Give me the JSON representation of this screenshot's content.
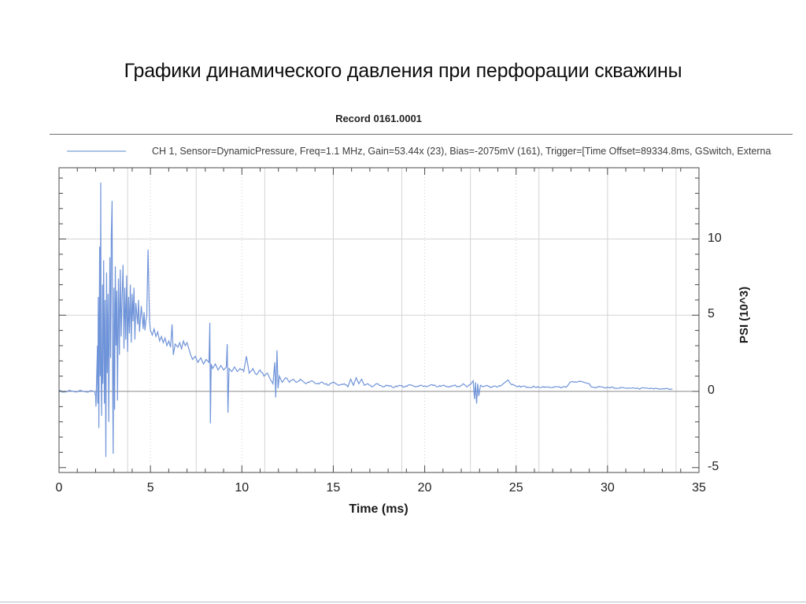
{
  "slide_title": "Графики динамического давления при перфорации скважины",
  "colors": {
    "waveform": "#7094d9",
    "legend_swatch": "#aac4e4",
    "grid_solid": "#d4d4d4",
    "grid_dotted": "#cfcfcf",
    "grid_horizontal": "#d4d4d4",
    "zero_line": "#8a8a8a",
    "frame": "#4a4a4a",
    "tick": "#4a4a4a"
  },
  "chart_data": {
    "type": "line",
    "title": "Record 0161.0001",
    "xlabel": "Time (ms)",
    "ylabel": "PSI (10^3)",
    "xlim": [
      0,
      35
    ],
    "ylim": [
      -5.4,
      14.7
    ],
    "x_major_ticks": [
      0,
      5,
      10,
      15,
      20,
      25,
      30,
      35
    ],
    "x_minor_step": 1,
    "y_major_ticks": [
      -5,
      0,
      5,
      10
    ],
    "y_minor_step": 1,
    "grid": {
      "vertical_solid_step_ms": 3.75,
      "vertical_dotted_at_ms": [
        5,
        10,
        15,
        20,
        25,
        30
      ],
      "horizontal_light_at": [
        5,
        10
      ],
      "zero_line_at": 0
    },
    "legend": {
      "position": "top-left-inside",
      "entries": [
        {
          "label": "CH 1, Sensor=DynamicPressure, Freq=1.1 MHz, Gain=53.44x (23), Bias=-2075mV (161), Trigger=[Time Offset=89334.8ms, GSwitch, Externa",
          "color": "#aac4e4"
        }
      ]
    },
    "series": [
      {
        "name": "CH 1 Dynamic Pressure",
        "color": "#7094d9",
        "points": [
          [
            0,
            0.05
          ],
          [
            0.3,
            -0.05
          ],
          [
            0.6,
            0.06
          ],
          [
            0.9,
            -0.04
          ],
          [
            1.2,
            0.05
          ],
          [
            1.5,
            -0.05
          ],
          [
            1.8,
            0.04
          ],
          [
            1.95,
            -0.02
          ],
          [
            2.0,
            -0.3
          ],
          [
            2.02,
            -1.0
          ],
          [
            2.05,
            0.5
          ],
          [
            2.1,
            3.0
          ],
          [
            2.12,
            -0.8
          ],
          [
            2.15,
            6.2
          ],
          [
            2.18,
            -2.4
          ],
          [
            2.22,
            9.5
          ],
          [
            2.25,
            1.0
          ],
          [
            2.28,
            13.7
          ],
          [
            2.3,
            2.0
          ],
          [
            2.33,
            -1.6
          ],
          [
            2.38,
            7.0
          ],
          [
            2.4,
            0.5
          ],
          [
            2.44,
            8.6
          ],
          [
            2.48,
            -0.8
          ],
          [
            2.52,
            6.0
          ],
          [
            2.56,
            -4.3
          ],
          [
            2.6,
            7.8
          ],
          [
            2.64,
            1.2
          ],
          [
            2.68,
            6.4
          ],
          [
            2.72,
            -2.0
          ],
          [
            2.78,
            8.8
          ],
          [
            2.82,
            2.2
          ],
          [
            2.86,
            10.2
          ],
          [
            2.9,
            12.5
          ],
          [
            2.93,
            0.8
          ],
          [
            2.96,
            -4.1
          ],
          [
            3.0,
            6.8
          ],
          [
            3.04,
            -1.2
          ],
          [
            3.08,
            8.2
          ],
          [
            3.12,
            3.0
          ],
          [
            3.16,
            6.6
          ],
          [
            3.2,
            -0.6
          ],
          [
            3.25,
            7.4
          ],
          [
            3.3,
            2.4
          ],
          [
            3.35,
            8.0
          ],
          [
            3.4,
            3.6
          ],
          [
            3.45,
            6.2
          ],
          [
            3.5,
            8.3
          ],
          [
            3.55,
            2.8
          ],
          [
            3.6,
            6.8
          ],
          [
            3.65,
            3.4
          ],
          [
            3.7,
            7.6
          ],
          [
            3.75,
            2.6
          ],
          [
            3.8,
            6.2
          ],
          [
            3.85,
            3.8
          ],
          [
            3.9,
            7.0
          ],
          [
            3.95,
            3.2
          ],
          [
            4.0,
            6.4
          ],
          [
            4.05,
            4.6
          ],
          [
            4.1,
            6.8
          ],
          [
            4.15,
            3.4
          ],
          [
            4.2,
            5.8
          ],
          [
            4.3,
            4.4
          ],
          [
            4.35,
            6.0
          ],
          [
            4.4,
            3.9
          ],
          [
            4.5,
            5.6
          ],
          [
            4.6,
            4.1
          ],
          [
            4.65,
            5.2
          ],
          [
            4.7,
            4.0
          ],
          [
            4.75,
            4.6
          ],
          [
            4.8,
            5.0
          ],
          [
            4.87,
            9.3
          ],
          [
            4.95,
            4.6
          ],
          [
            5.0,
            4.0
          ],
          [
            5.1,
            3.7
          ],
          [
            5.2,
            4.1
          ],
          [
            5.3,
            3.6
          ],
          [
            5.4,
            3.9
          ],
          [
            5.5,
            3.3
          ],
          [
            5.6,
            3.6
          ],
          [
            5.7,
            3.2
          ],
          [
            5.8,
            3.5
          ],
          [
            5.9,
            3.0
          ],
          [
            6.0,
            3.3
          ],
          [
            6.1,
            2.9
          ],
          [
            6.18,
            4.4
          ],
          [
            6.25,
            2.4
          ],
          [
            6.35,
            3.1
          ],
          [
            6.5,
            2.9
          ],
          [
            6.6,
            3.2
          ],
          [
            6.7,
            2.8
          ],
          [
            6.8,
            3.3
          ],
          [
            6.9,
            3.0
          ],
          [
            7.0,
            3.2
          ],
          [
            7.1,
            2.8
          ],
          [
            7.2,
            2.4
          ],
          [
            7.3,
            2.1
          ],
          [
            7.45,
            2.3
          ],
          [
            7.6,
            1.9
          ],
          [
            7.75,
            2.2
          ],
          [
            7.9,
            1.8
          ],
          [
            8.05,
            2.1
          ],
          [
            8.2,
            1.9
          ],
          [
            8.25,
            4.5
          ],
          [
            8.28,
            -2.1
          ],
          [
            8.32,
            1.8
          ],
          [
            8.4,
            1.5
          ],
          [
            8.55,
            1.8
          ],
          [
            8.7,
            1.4
          ],
          [
            8.85,
            1.7
          ],
          [
            9.0,
            1.4
          ],
          [
            9.15,
            1.6
          ],
          [
            9.2,
            3.1
          ],
          [
            9.24,
            -1.4
          ],
          [
            9.3,
            1.5
          ],
          [
            9.45,
            1.3
          ],
          [
            9.6,
            1.6
          ],
          [
            9.75,
            1.3
          ],
          [
            9.9,
            1.5
          ],
          [
            10.1,
            1.3
          ],
          [
            10.25,
            2.3
          ],
          [
            10.4,
            1.2
          ],
          [
            10.6,
            1.5
          ],
          [
            10.8,
            1.1
          ],
          [
            11.0,
            1.4
          ],
          [
            11.2,
            1.0
          ],
          [
            11.4,
            1.2
          ],
          [
            11.55,
            0.8
          ],
          [
            11.7,
            0.5
          ],
          [
            11.8,
            1.9
          ],
          [
            11.85,
            -0.4
          ],
          [
            11.92,
            2.7
          ],
          [
            11.98,
            0.2
          ],
          [
            12.05,
            1.0
          ],
          [
            12.2,
            0.6
          ],
          [
            12.4,
            0.9
          ],
          [
            12.6,
            0.6
          ],
          [
            12.8,
            0.8
          ],
          [
            13.0,
            0.6
          ],
          [
            13.2,
            0.8
          ],
          [
            13.5,
            0.5
          ],
          [
            13.8,
            0.7
          ],
          [
            14.1,
            0.5
          ],
          [
            14.4,
            0.6
          ],
          [
            14.7,
            0.4
          ],
          [
            15.0,
            0.6
          ],
          [
            15.3,
            0.4
          ],
          [
            15.6,
            0.5
          ],
          [
            15.8,
            0.3
          ],
          [
            15.95,
            0.8
          ],
          [
            16.1,
            0.4
          ],
          [
            16.25,
            0.9
          ],
          [
            16.4,
            0.5
          ],
          [
            16.55,
            0.8
          ],
          [
            16.7,
            0.4
          ],
          [
            16.9,
            0.5
          ],
          [
            17.1,
            0.3
          ],
          [
            17.4,
            0.5
          ],
          [
            17.7,
            0.3
          ],
          [
            18.0,
            0.4
          ],
          [
            18.3,
            0.25
          ],
          [
            18.6,
            0.4
          ],
          [
            18.9,
            0.3
          ],
          [
            19.2,
            0.45
          ],
          [
            19.5,
            0.3
          ],
          [
            19.8,
            0.4
          ],
          [
            20.1,
            0.3
          ],
          [
            20.4,
            0.45
          ],
          [
            20.7,
            0.3
          ],
          [
            21.0,
            0.4
          ],
          [
            21.3,
            0.28
          ],
          [
            21.6,
            0.4
          ],
          [
            21.9,
            0.3
          ],
          [
            22.1,
            0.5
          ],
          [
            22.3,
            0.3
          ],
          [
            22.5,
            0.45
          ],
          [
            22.65,
            0.7
          ],
          [
            22.72,
            -0.5
          ],
          [
            22.78,
            0.6
          ],
          [
            22.84,
            -0.8
          ],
          [
            22.9,
            0.5
          ],
          [
            22.96,
            -0.3
          ],
          [
            23.05,
            0.4
          ],
          [
            23.2,
            0.3
          ],
          [
            23.4,
            0.4
          ],
          [
            23.6,
            0.25
          ],
          [
            23.8,
            0.35
          ],
          [
            24.0,
            0.3
          ],
          [
            24.2,
            0.4
          ],
          [
            24.4,
            0.6
          ],
          [
            24.55,
            0.75
          ],
          [
            24.7,
            0.5
          ],
          [
            24.9,
            0.4
          ],
          [
            25.1,
            0.3
          ],
          [
            25.4,
            0.35
          ],
          [
            25.7,
            0.25
          ],
          [
            26.0,
            0.3
          ],
          [
            26.3,
            0.25
          ],
          [
            26.6,
            0.3
          ],
          [
            26.9,
            0.25
          ],
          [
            27.2,
            0.3
          ],
          [
            27.5,
            0.25
          ],
          [
            27.8,
            0.35
          ],
          [
            27.95,
            0.6
          ],
          [
            28.1,
            0.65
          ],
          [
            28.3,
            0.6
          ],
          [
            28.5,
            0.65
          ],
          [
            28.7,
            0.6
          ],
          [
            28.85,
            0.55
          ],
          [
            29.0,
            0.5
          ],
          [
            29.1,
            0.3
          ],
          [
            29.3,
            0.25
          ],
          [
            29.6,
            0.3
          ],
          [
            29.9,
            0.22
          ],
          [
            30.2,
            0.28
          ],
          [
            30.5,
            0.2
          ],
          [
            30.8,
            0.25
          ],
          [
            31.1,
            0.2
          ],
          [
            31.4,
            0.24
          ],
          [
            31.7,
            0.18
          ],
          [
            32.0,
            0.22
          ],
          [
            32.3,
            0.18
          ],
          [
            32.6,
            0.2
          ],
          [
            32.9,
            0.16
          ],
          [
            33.2,
            0.18
          ],
          [
            33.45,
            0.15
          ],
          [
            33.55,
            0.15
          ]
        ]
      }
    ]
  }
}
